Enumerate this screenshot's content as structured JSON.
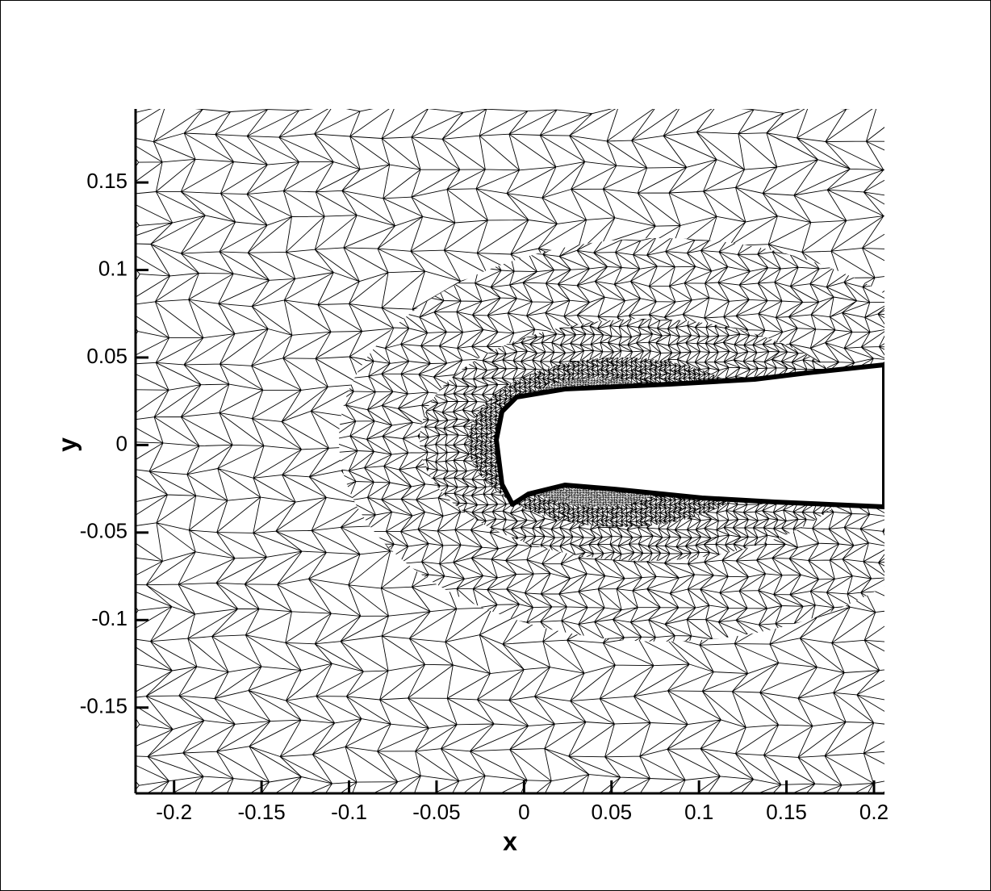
{
  "chart_data": {
    "type": "mesh",
    "xlabel": "x",
    "ylabel": "y",
    "xlim": [
      -0.222,
      0.206
    ],
    "ylim": [
      -0.199,
      0.192
    ],
    "xticks": [
      -0.2,
      -0.15,
      -0.1,
      -0.05,
      0,
      0.05,
      0.1,
      0.15,
      0.2
    ],
    "yticks": [
      -0.15,
      -0.1,
      -0.05,
      0,
      0.05,
      0.1,
      0.15
    ]
  }
}
